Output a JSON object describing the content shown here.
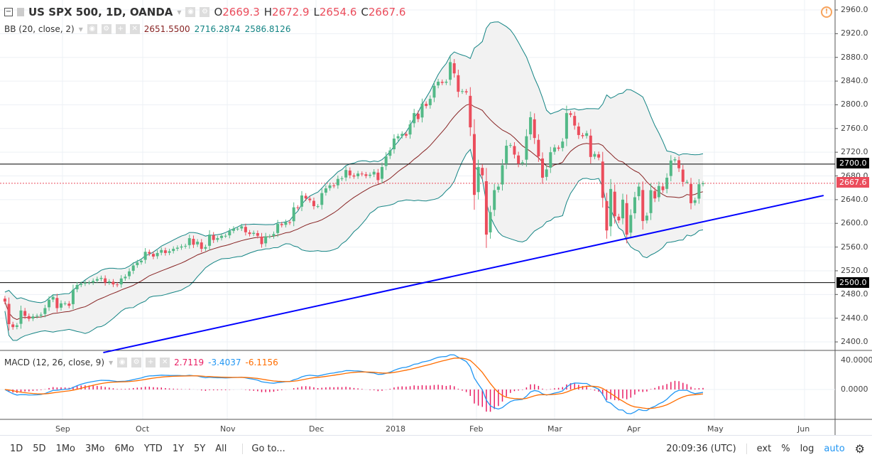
{
  "header": {
    "symbol": "US SPX 500, 1D, OANDA",
    "o_label": "O",
    "o": "2669.3",
    "h_label": "H",
    "h": "2672.9",
    "l_label": "L",
    "l": "2654.6",
    "c_label": "C",
    "c": "2667.6"
  },
  "bb": {
    "label": "BB (20, close, 2)",
    "basis": "2651.5500",
    "upper": "2716.2874",
    "lower": "2586.8126"
  },
  "macd": {
    "label": "MACD (12, 26, close, 9)",
    "hist": "2.7119",
    "macd": "-3.4037",
    "signal": "-6.1156"
  },
  "price_axis": [
    "2960.0",
    "2920.0",
    "2880.0",
    "2840.0",
    "2800.0",
    "2760.0",
    "2720.0",
    "2680.0",
    "2640.0",
    "2600.0",
    "2560.0",
    "2520.0",
    "2480.0",
    "2440.0",
    "2400.0"
  ],
  "macd_axis": [
    "40.0000",
    "0.0000"
  ],
  "level_tags": {
    "upper": "2700.0",
    "last": "2667.6",
    "lower": "2500.0"
  },
  "time_axis": [
    "Sep",
    "Oct",
    "Nov",
    "Dec",
    "2018",
    "Feb",
    "Mar",
    "Apr",
    "May",
    "Jun"
  ],
  "toolbar": {
    "ranges": [
      "1D",
      "5D",
      "1Mo",
      "3Mo",
      "6Mo",
      "YTD",
      "1Y",
      "5Y",
      "All"
    ],
    "goto": "Go to...",
    "clock": "20:09:36 (UTC)",
    "ext": "ext",
    "pct": "%",
    "log": "log",
    "auto": "auto"
  },
  "colors": {
    "up": "#53b987",
    "down": "#eb4d5c",
    "bb_basis": "#872323",
    "bb_band": "#138484",
    "trend": "#0000ff",
    "macd": "#2196f3",
    "signal": "#ff6d00",
    "hist": "#e91e63"
  },
  "chart_data": {
    "type": "candlestick",
    "ylim": [
      2380,
      2970
    ],
    "levels": [
      2700,
      2500
    ],
    "last_price": 2667.6,
    "trendline": {
      "from": {
        "date": "2017-09-16",
        "price": 2382
      },
      "to": {
        "date": "2018-06-08",
        "price": 2647
      }
    },
    "closes": [
      2468,
      2430,
      2425,
      2428,
      2453,
      2444,
      2439,
      2443,
      2444,
      2446,
      2457,
      2471,
      2476,
      2457,
      2465,
      2465,
      2461,
      2488,
      2496,
      2498,
      2500,
      2500,
      2503,
      2506,
      2508,
      2500,
      2502,
      2497,
      2496,
      2507,
      2510,
      2519,
      2529,
      2534,
      2537,
      2552,
      2549,
      2544,
      2550,
      2555,
      2550,
      2553,
      2557,
      2559,
      2561,
      2562,
      2575,
      2564,
      2569,
      2557,
      2560,
      2581,
      2572,
      2575,
      2579,
      2579,
      2587,
      2591,
      2591,
      2595,
      2585,
      2582,
      2584,
      2579,
      2565,
      2578,
      2578,
      2582,
      2599,
      2597,
      2602,
      2601,
      2627,
      2626,
      2647,
      2642,
      2639,
      2629,
      2629,
      2651,
      2659,
      2664,
      2663,
      2675,
      2676,
      2690,
      2681,
      2679,
      2684,
      2683,
      2680,
      2682,
      2687,
      2673,
      2695,
      2713,
      2723,
      2743,
      2747,
      2751,
      2748,
      2767,
      2786,
      2776,
      2802,
      2798,
      2810,
      2832,
      2839,
      2837,
      2839,
      2872,
      2853,
      2822,
      2823,
      2821,
      2762,
      2648,
      2695,
      2681,
      2581,
      2619,
      2656,
      2662,
      2698,
      2731,
      2732,
      2716,
      2701,
      2703,
      2747,
      2779,
      2744,
      2713,
      2677,
      2691,
      2720,
      2728,
      2726,
      2738,
      2786,
      2783,
      2765,
      2749,
      2747,
      2752,
      2712,
      2717,
      2711,
      2643,
      2588,
      2658,
      2612,
      2605,
      2640,
      2581,
      2614,
      2644,
      2662,
      2604,
      2613,
      2656,
      2642,
      2663,
      2656,
      2677,
      2706,
      2708,
      2693,
      2670,
      2670,
      2634,
      2639,
      2666,
      2667.6
    ]
  }
}
